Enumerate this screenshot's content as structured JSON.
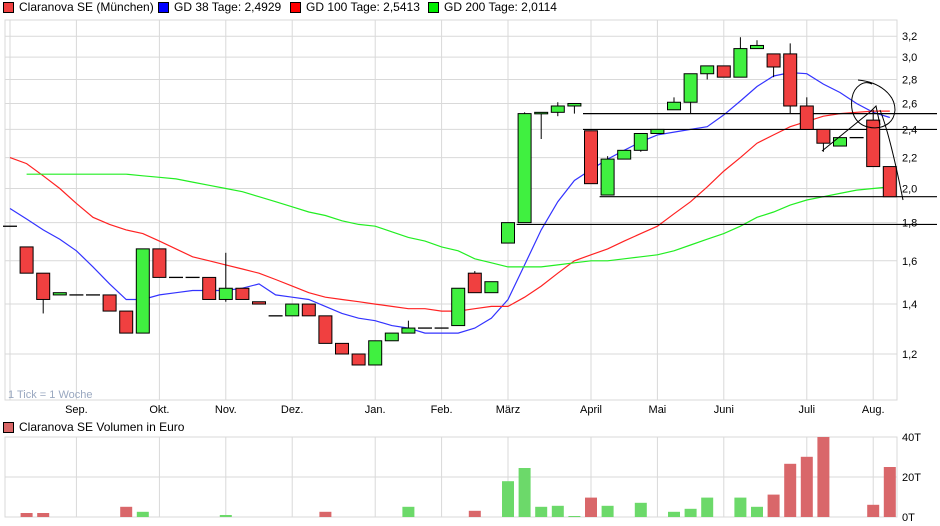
{
  "legend": [
    {
      "label": "Claranova SE (München)",
      "color": "#f04040"
    },
    {
      "label": "GD 38 Tage: 2,4929",
      "color": "#0000ff"
    },
    {
      "label": "GD 100 Tage: 2,5413",
      "color": "#ff0000"
    },
    {
      "label": "GD 200 Tage: 2,0114",
      "color": "#00dd00"
    }
  ],
  "tick_note": "1 Tick = 1 Woche",
  "volume_legend": {
    "label": "Claranova SE Volumen in Euro",
    "color": "#d96666"
  },
  "colors": {
    "up": "#40f040",
    "down": "#f04040",
    "vol_up": "#6cd96a",
    "vol_down": "#d9676a",
    "gd38": "#3333ff",
    "gd100": "#ff2222",
    "gd200": "#22ee22",
    "grid": "#d9d9d9"
  },
  "chart_data": [
    {
      "type": "candlestick",
      "scale": "log",
      "ylim": [
        1.05,
        3.35
      ],
      "grid": true,
      "legend_placement": "top",
      "y_ticks": [
        "3,2",
        "3,0",
        "2,8",
        "2,6",
        "2,4",
        "2,2",
        "2,0",
        "1,8",
        "1,6",
        "1,4",
        "1,2"
      ],
      "y_tick_values": [
        3.2,
        3.0,
        2.8,
        2.6,
        2.4,
        2.2,
        2.0,
        1.8,
        1.6,
        1.4,
        1.2
      ],
      "x_ticks": [
        {
          "label": "Sep.",
          "week": 4
        },
        {
          "label": "Okt.",
          "week": 9
        },
        {
          "label": "Nov.",
          "week": 13
        },
        {
          "label": "Dez.",
          "week": 17
        },
        {
          "label": "Jan.",
          "week": 22
        },
        {
          "label": "Feb.",
          "week": 26
        },
        {
          "label": "März",
          "week": 30
        },
        {
          "label": "April",
          "week": 35
        },
        {
          "label": "Mai",
          "week": 39
        },
        {
          "label": "Juni",
          "week": 43
        },
        {
          "label": "Juli",
          "week": 48
        },
        {
          "label": "Aug.",
          "week": 52
        }
      ],
      "ohlc": [
        [
          1.78,
          1.78,
          1.78,
          1.78
        ],
        [
          1.67,
          1.67,
          1.54,
          1.54
        ],
        [
          1.54,
          1.54,
          1.36,
          1.42
        ],
        [
          1.44,
          1.45,
          1.44,
          1.45
        ],
        [
          1.44,
          1.44,
          1.44,
          1.44
        ],
        [
          1.44,
          1.44,
          1.44,
          1.44
        ],
        [
          1.44,
          1.44,
          1.37,
          1.37
        ],
        [
          1.37,
          1.37,
          1.28,
          1.28
        ],
        [
          1.28,
          1.66,
          1.28,
          1.66
        ],
        [
          1.66,
          1.66,
          1.52,
          1.52
        ],
        [
          1.52,
          1.52,
          1.52,
          1.52
        ],
        [
          1.52,
          1.52,
          1.52,
          1.52
        ],
        [
          1.52,
          1.52,
          1.42,
          1.42
        ],
        [
          1.42,
          1.64,
          1.41,
          1.47
        ],
        [
          1.47,
          1.47,
          1.42,
          1.42
        ],
        [
          1.41,
          1.41,
          1.4,
          1.4
        ],
        [
          1.35,
          1.35,
          1.35,
          1.35
        ],
        [
          1.35,
          1.4,
          1.35,
          1.4
        ],
        [
          1.4,
          1.4,
          1.35,
          1.35
        ],
        [
          1.35,
          1.35,
          1.24,
          1.24
        ],
        [
          1.24,
          1.24,
          1.2,
          1.2
        ],
        [
          1.2,
          1.2,
          1.16,
          1.16
        ],
        [
          1.16,
          1.25,
          1.16,
          1.25
        ],
        [
          1.25,
          1.28,
          1.25,
          1.28
        ],
        [
          1.28,
          1.33,
          1.28,
          1.3
        ],
        [
          1.3,
          1.3,
          1.3,
          1.3
        ],
        [
          1.3,
          1.3,
          1.3,
          1.3
        ],
        [
          1.31,
          1.47,
          1.31,
          1.47
        ],
        [
          1.54,
          1.55,
          1.45,
          1.45
        ],
        [
          1.45,
          1.5,
          1.45,
          1.5
        ],
        [
          1.69,
          1.8,
          1.69,
          1.8
        ],
        [
          1.8,
          2.53,
          1.8,
          2.52
        ],
        [
          2.52,
          2.53,
          2.33,
          2.53
        ],
        [
          2.53,
          2.61,
          2.5,
          2.58
        ],
        [
          2.58,
          2.6,
          2.52,
          2.6
        ],
        [
          2.39,
          2.39,
          2.03,
          2.03
        ],
        [
          1.96,
          2.21,
          1.96,
          2.19
        ],
        [
          2.19,
          2.25,
          2.19,
          2.25
        ],
        [
          2.25,
          2.37,
          2.24,
          2.37
        ],
        [
          2.37,
          2.4,
          2.37,
          2.4
        ],
        [
          2.55,
          2.65,
          2.55,
          2.61
        ],
        [
          2.61,
          2.85,
          2.52,
          2.85
        ],
        [
          2.85,
          2.92,
          2.8,
          2.92
        ],
        [
          2.92,
          2.92,
          2.82,
          2.82
        ],
        [
          2.82,
          3.19,
          2.82,
          3.08
        ],
        [
          3.08,
          3.16,
          3.08,
          3.11
        ],
        [
          3.03,
          3.03,
          2.82,
          2.91
        ],
        [
          3.03,
          3.13,
          2.52,
          2.58
        ],
        [
          2.58,
          2.65,
          2.4,
          2.4
        ],
        [
          2.4,
          2.4,
          2.24,
          2.3
        ],
        [
          2.28,
          2.34,
          2.28,
          2.34
        ],
        [
          2.34,
          2.34,
          2.34,
          2.34
        ],
        [
          2.47,
          2.55,
          2.14,
          2.14
        ],
        [
          2.14,
          2.14,
          1.95,
          1.95
        ]
      ],
      "series": [
        {
          "name": "GD 38 Tage",
          "values": [
            1.88,
            1.82,
            1.76,
            1.71,
            1.65,
            1.57,
            1.49,
            1.42,
            1.42,
            1.44,
            1.45,
            1.46,
            1.46,
            1.46,
            1.47,
            1.49,
            1.44,
            1.43,
            1.42,
            1.39,
            1.36,
            1.34,
            1.33,
            1.31,
            1.3,
            1.28,
            1.28,
            1.28,
            1.3,
            1.34,
            1.42,
            1.58,
            1.76,
            1.92,
            2.05,
            2.12,
            2.19,
            2.25,
            2.31,
            2.36,
            2.38,
            2.4,
            2.42,
            2.51,
            2.62,
            2.74,
            2.83,
            2.86,
            2.85,
            2.76,
            2.69,
            2.6,
            2.53,
            2.49
          ]
        },
        {
          "name": "GD 100 Tage",
          "values": [
            2.2,
            2.16,
            2.08,
            2.0,
            1.91,
            1.83,
            1.79,
            1.76,
            1.74,
            1.7,
            1.66,
            1.62,
            1.6,
            1.58,
            1.56,
            1.54,
            1.51,
            1.48,
            1.45,
            1.43,
            1.42,
            1.41,
            1.4,
            1.39,
            1.38,
            1.38,
            1.37,
            1.37,
            1.38,
            1.39,
            1.39,
            1.43,
            1.48,
            1.54,
            1.6,
            1.63,
            1.66,
            1.7,
            1.74,
            1.78,
            1.85,
            1.92,
            2.01,
            2.11,
            2.2,
            2.3,
            2.36,
            2.42,
            2.46,
            2.5,
            2.52,
            2.53,
            2.54,
            2.54
          ]
        },
        {
          "name": "GD 200 Tage",
          "values": [
            null,
            2.09,
            2.09,
            2.09,
            2.09,
            2.09,
            2.09,
            2.09,
            2.08,
            2.07,
            2.06,
            2.04,
            2.02,
            2.0,
            1.98,
            1.95,
            1.92,
            1.89,
            1.86,
            1.84,
            1.81,
            1.79,
            1.78,
            1.75,
            1.72,
            1.7,
            1.67,
            1.65,
            1.61,
            1.59,
            1.57,
            1.57,
            1.57,
            1.58,
            1.59,
            1.6,
            1.6,
            1.61,
            1.62,
            1.63,
            1.65,
            1.68,
            1.71,
            1.74,
            1.78,
            1.83,
            1.86,
            1.9,
            1.93,
            1.95,
            1.97,
            1.99,
            2.0,
            2.01
          ]
        }
      ],
      "support_lines": [
        {
          "price": 2.52,
          "from_week": 35
        },
        {
          "price": 2.4,
          "from_week": 35
        },
        {
          "price": 1.95,
          "from_week": 36
        },
        {
          "price": 1.79,
          "from_week": 31
        }
      ]
    },
    {
      "type": "bar",
      "title": "Claranova SE Volumen in Euro",
      "ylim": [
        0,
        40
      ],
      "y_ticks": [
        "40T",
        "20T",
        "0T"
      ],
      "y_tick_values": [
        40,
        20,
        0
      ],
      "unit": "T",
      "bars": [
        {
          "week": 1,
          "value": 2.0,
          "dir": "down"
        },
        {
          "week": 2,
          "value": 2.0,
          "dir": "down"
        },
        {
          "week": 7,
          "value": 5.1,
          "dir": "down"
        },
        {
          "week": 8,
          "value": 2.6,
          "dir": "up"
        },
        {
          "week": 13,
          "value": 1.0,
          "dir": "up"
        },
        {
          "week": 19,
          "value": 2.6,
          "dir": "down"
        },
        {
          "week": 24,
          "value": 5.1,
          "dir": "up"
        },
        {
          "week": 28,
          "value": 3.1,
          "dir": "down"
        },
        {
          "week": 30,
          "value": 17.9,
          "dir": "up"
        },
        {
          "week": 31,
          "value": 24.5,
          "dir": "up"
        },
        {
          "week": 32,
          "value": 5.1,
          "dir": "up"
        },
        {
          "week": 33,
          "value": 5.6,
          "dir": "up"
        },
        {
          "week": 34,
          "value": 0.5,
          "dir": "up"
        },
        {
          "week": 35,
          "value": 9.7,
          "dir": "down"
        },
        {
          "week": 36,
          "value": 5.6,
          "dir": "up"
        },
        {
          "week": 38,
          "value": 7.1,
          "dir": "up"
        },
        {
          "week": 40,
          "value": 2.6,
          "dir": "up"
        },
        {
          "week": 41,
          "value": 4.1,
          "dir": "up"
        },
        {
          "week": 42,
          "value": 9.7,
          "dir": "up"
        },
        {
          "week": 44,
          "value": 9.7,
          "dir": "up"
        },
        {
          "week": 45,
          "value": 5.1,
          "dir": "up"
        },
        {
          "week": 46,
          "value": 11.2,
          "dir": "down"
        },
        {
          "week": 47,
          "value": 26.6,
          "dir": "down"
        },
        {
          "week": 48,
          "value": 30.1,
          "dir": "down"
        },
        {
          "week": 49,
          "value": 40,
          "dir": "down"
        },
        {
          "week": 52,
          "value": 6.1,
          "dir": "down"
        },
        {
          "week": 53,
          "value": 25.0,
          "dir": "down"
        }
      ]
    }
  ]
}
